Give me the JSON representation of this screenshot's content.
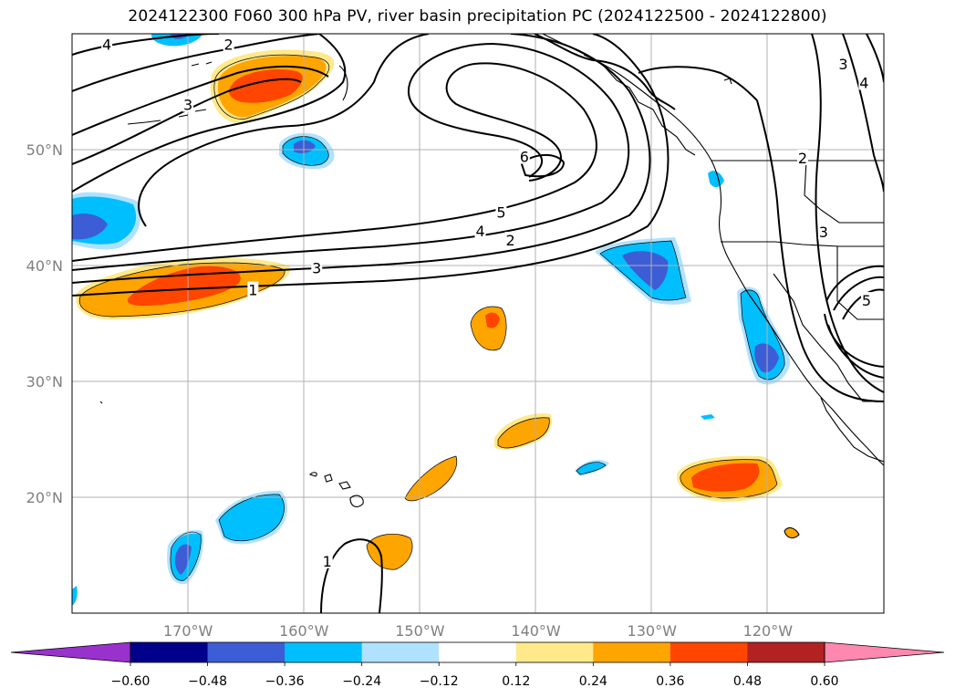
{
  "title": "2024122300 F060 300 hPa PV, river basin precipitation PC (2024122500 - 2024122800)",
  "map": {
    "lon_range": [
      -180,
      -110
    ],
    "lat_range": [
      10,
      60
    ],
    "lon_ticks": [
      {
        "lon": -170,
        "label": "170°W"
      },
      {
        "lon": -160,
        "label": "160°W"
      },
      {
        "lon": -150,
        "label": "150°W"
      },
      {
        "lon": -140,
        "label": "140°W"
      },
      {
        "lon": -130,
        "label": "130°W"
      },
      {
        "lon": -120,
        "label": "120°W"
      }
    ],
    "lat_ticks": [
      {
        "lat": 20,
        "label": "20°N"
      },
      {
        "lat": 30,
        "label": "30°N"
      },
      {
        "lat": 40,
        "label": "40°N"
      },
      {
        "lat": 50,
        "label": "50°N"
      }
    ],
    "gridlines": true
  },
  "contour_labels": [
    {
      "text": "4",
      "lon": -177.0,
      "lat": 59.1
    },
    {
      "text": "2",
      "lon": -166.5,
      "lat": 59.1
    },
    {
      "text": "3",
      "lon": -170.0,
      "lat": 53.9
    },
    {
      "text": "6",
      "lon": -141.0,
      "lat": 49.4
    },
    {
      "text": "5",
      "lon": -143.0,
      "lat": 44.6
    },
    {
      "text": "4",
      "lon": -144.8,
      "lat": 43.0
    },
    {
      "text": "2",
      "lon": -142.2,
      "lat": 42.2
    },
    {
      "text": "3",
      "lon": -158.9,
      "lat": 39.8
    },
    {
      "text": "1",
      "lon": -164.4,
      "lat": 37.9
    },
    {
      "text": "3",
      "lon": -113.5,
      "lat": 57.4
    },
    {
      "text": "4",
      "lon": -111.7,
      "lat": 55.8
    },
    {
      "text": "2",
      "lon": -117.0,
      "lat": 49.3
    },
    {
      "text": "3",
      "lon": -115.2,
      "lat": 42.9
    },
    {
      "text": "5",
      "lon": -111.5,
      "lat": 37.0
    },
    {
      "text": "1",
      "lon": -158.0,
      "lat": 14.5
    }
  ],
  "colorbar": {
    "ticks": [
      "−0.60",
      "−0.48",
      "−0.36",
      "−0.24",
      "−0.12",
      "0.12",
      "0.24",
      "0.36",
      "0.48",
      "0.60"
    ],
    "colors": [
      "#9932cc",
      "#00008b",
      "#3c5dd6",
      "#00bfff",
      "#b0e2ff",
      "#ffffff",
      "#ffe98a",
      "#ffa500",
      "#ff4500",
      "#b22222",
      "#ff88b0"
    ]
  },
  "chart_data": {
    "type": "map",
    "title": "2024122300 F060 300 hPa PV, river basin precipitation PC (2024122500 - 2024122800)",
    "xlim": [
      -180,
      -110
    ],
    "ylim": [
      10,
      60
    ],
    "pv_contour_levels": [
      1,
      2,
      3,
      4,
      5,
      6
    ],
    "colorbar_levels": [
      -0.6,
      -0.48,
      -0.36,
      -0.24,
      -0.12,
      0.12,
      0.24,
      0.36,
      0.48,
      0.6
    ]
  }
}
